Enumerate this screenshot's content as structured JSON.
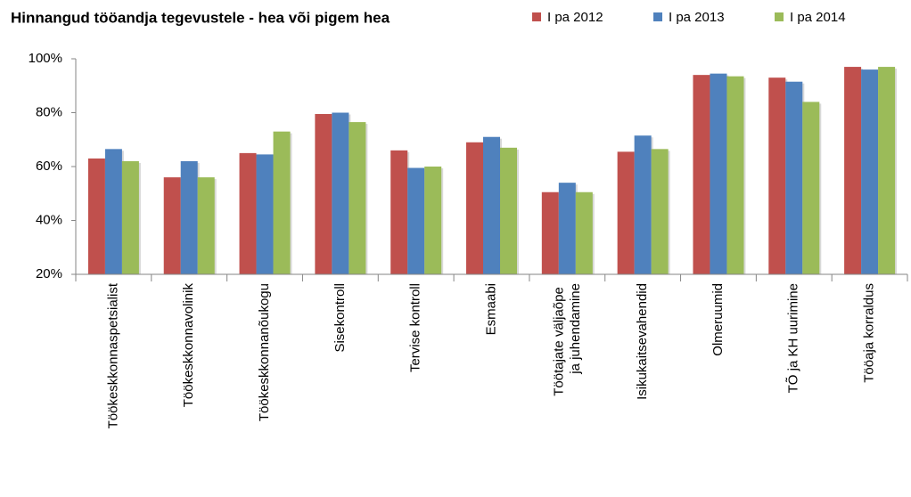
{
  "chart_data": {
    "type": "bar",
    "title": "Hinnangud tööandja tegevustele - hea või pigem hea",
    "categories": [
      "Töökeskkonnaspetsialist",
      "Töökeskkonnavolinik",
      "Töökeskkonnanõukogu",
      "Sisekontroll",
      "Tervise kontroll",
      "Esmaabi",
      "Töötajate väljaõpe ja juhendamine",
      "Isikukaitsevahendid",
      "Olmeruumid",
      "TÕ ja KH uurimine",
      "Tööaja korraldus"
    ],
    "series": [
      {
        "name": "I pa 2012",
        "color": "#c0504d",
        "values": [
          63,
          56,
          65,
          79.5,
          66,
          69,
          50.5,
          65.5,
          94,
          93,
          97
        ]
      },
      {
        "name": "I pa 2013",
        "color": "#4f81bd",
        "values": [
          66.5,
          62,
          64.5,
          80,
          59.5,
          71,
          54,
          71.5,
          94.5,
          91.5,
          96
        ]
      },
      {
        "name": "I pa 2014",
        "color": "#9bbb59",
        "values": [
          62,
          56,
          73,
          76.5,
          60,
          67,
          50.5,
          66.5,
          93.5,
          84,
          97
        ]
      }
    ],
    "ylim": [
      20,
      100
    ],
    "yticks": [
      {
        "value": 20,
        "label": "20%"
      },
      {
        "value": 40,
        "label": "40%"
      },
      {
        "value": 60,
        "label": "60%"
      },
      {
        "value": 80,
        "label": "80%"
      },
      {
        "value": 100,
        "label": "100%"
      }
    ],
    "grid": false,
    "legend": "top-right"
  }
}
